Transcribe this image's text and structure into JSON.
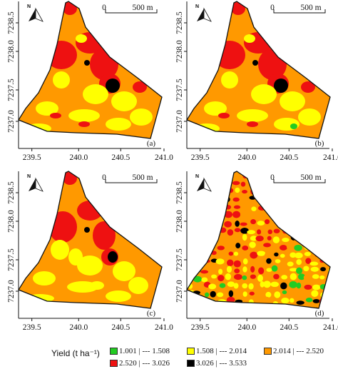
{
  "panels": [
    {
      "label": "(a)"
    },
    {
      "label": "(b)"
    },
    {
      "label": "(c)"
    },
    {
      "label": "(d)"
    }
  ],
  "x_ticks": [
    "239.5",
    "240.0",
    "240.5",
    "241.0"
  ],
  "y_ticks": [
    "7238.5",
    "7238.0",
    "7237.5",
    "7237.0"
  ],
  "north_label": "N",
  "scale_bar": {
    "start": "0",
    "end": "500 m"
  },
  "legend": {
    "title": "Yield (t ha⁻¹)",
    "classes": [
      {
        "label": "1.001 | --- 1.508",
        "color": "#22cc22"
      },
      {
        "label": "1.508 | --- 2.014",
        "color": "#ffff00"
      },
      {
        "label": "2.014 | --- 2.520",
        "color": "#ff9900"
      },
      {
        "label": "2.520 | --- 3.026",
        "color": "#ee1111"
      },
      {
        "label": "3.026 | --- 3.533",
        "color": "#000000"
      }
    ]
  },
  "colors": {
    "low": "#22cc22",
    "midlow": "#ffff00",
    "mid": "#ff9900",
    "high": "#ee1111",
    "top": "#000000"
  }
}
